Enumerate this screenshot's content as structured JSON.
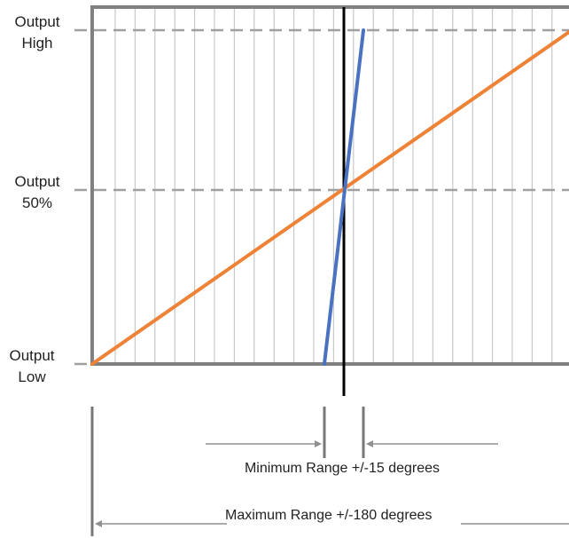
{
  "chart_data": {
    "type": "line",
    "title": "",
    "xlabel": "",
    "ylabel": "",
    "x_unit": "degrees",
    "xlim": [
      -180,
      180
    ],
    "grid": true,
    "y_ticks": [
      {
        "lines": [
          "Output",
          "High"
        ],
        "level": "high"
      },
      {
        "lines": [
          "Output",
          "50%"
        ],
        "level": "mid"
      },
      {
        "lines": [
          "Output",
          "Low"
        ],
        "level": "low"
      }
    ],
    "series": [
      {
        "color": "#ee8237",
        "x": [
          -180,
          180
        ],
        "y": [
          "low",
          "high"
        ]
      },
      {
        "color": "#4a72c0",
        "x": [
          -15,
          15
        ],
        "y": [
          "low",
          "high"
        ]
      }
    ],
    "center_line": {
      "x": 0,
      "color": "#000000"
    },
    "annotations": {
      "min_range": {
        "label": "Minimum Range +/-15 degrees",
        "from": -15,
        "to": 15
      },
      "max_range": {
        "label": "Maximum Range +/-180 degrees",
        "from": -180,
        "to": 180
      }
    }
  },
  "colors": {
    "frame": "#808080",
    "grid": "#c8c8c8",
    "dash": "#a0a0a0",
    "arrow": "#909090"
  }
}
